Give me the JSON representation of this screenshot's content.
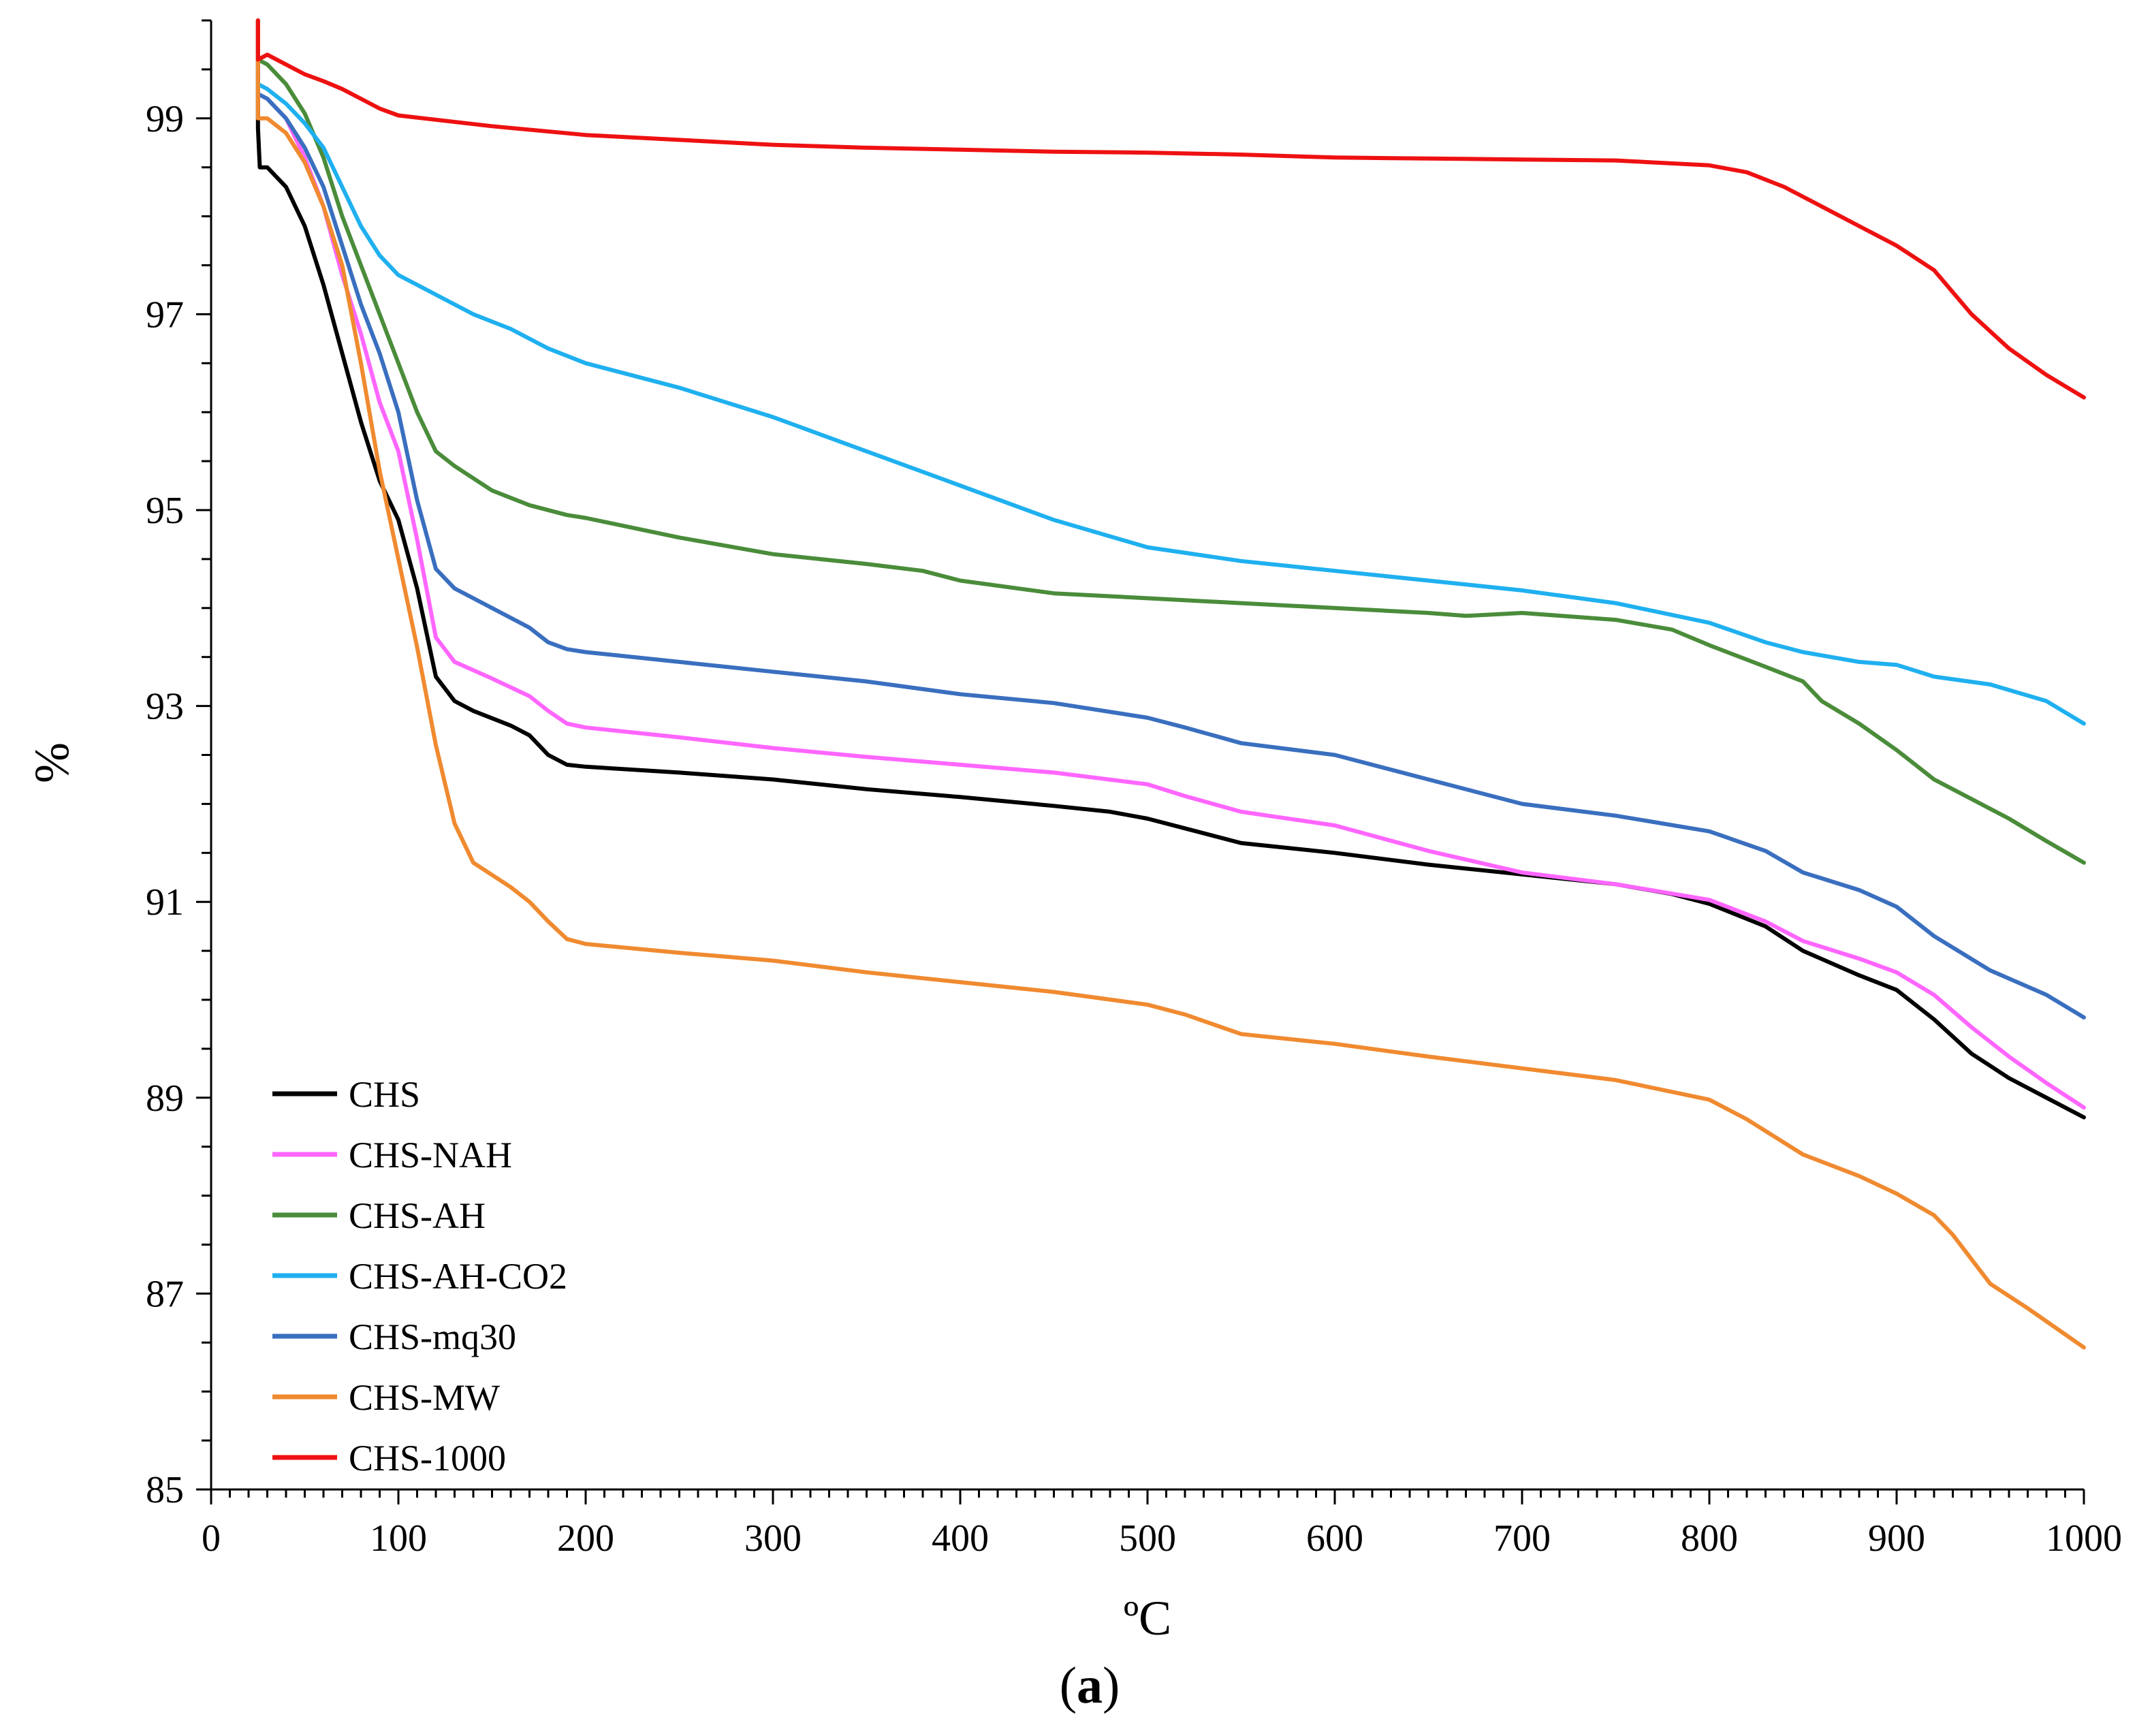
{
  "chart_data": {
    "type": "line",
    "title": "",
    "xlabel": "ºC",
    "ylabel": "%",
    "panel_label": {
      "open": "(",
      "letter": "a",
      "close": ")"
    },
    "xlim": [
      0,
      1000
    ],
    "ylim": [
      85,
      100
    ],
    "x_ticks": [
      0,
      100,
      200,
      300,
      400,
      500,
      600,
      700,
      800,
      900,
      1000
    ],
    "y_ticks": [
      85,
      87,
      89,
      91,
      93,
      95,
      97,
      99
    ],
    "y_minor_step": 0.5,
    "x_minor_step": 10,
    "legend_position": "bottom-left",
    "series": [
      {
        "name": "CHS",
        "color": "#000000",
        "points": [
          [
            25,
            100
          ],
          [
            25,
            98.9
          ],
          [
            26,
            98.5
          ],
          [
            30,
            98.5
          ],
          [
            40,
            98.3
          ],
          [
            50,
            97.9
          ],
          [
            60,
            97.3
          ],
          [
            70,
            96.6
          ],
          [
            80,
            95.9
          ],
          [
            90,
            95.3
          ],
          [
            100,
            94.9
          ],
          [
            110,
            94.2
          ],
          [
            120,
            93.3
          ],
          [
            130,
            93.05
          ],
          [
            140,
            92.95
          ],
          [
            160,
            92.8
          ],
          [
            170,
            92.7
          ],
          [
            180,
            92.5
          ],
          [
            190,
            92.4
          ],
          [
            200,
            92.38
          ],
          [
            250,
            92.32
          ],
          [
            300,
            92.25
          ],
          [
            350,
            92.15
          ],
          [
            400,
            92.07
          ],
          [
            450,
            91.98
          ],
          [
            480,
            91.92
          ],
          [
            500,
            91.85
          ],
          [
            520,
            91.75
          ],
          [
            550,
            91.6
          ],
          [
            600,
            91.5
          ],
          [
            650,
            91.38
          ],
          [
            700,
            91.28
          ],
          [
            750,
            91.18
          ],
          [
            780,
            91.08
          ],
          [
            800,
            90.98
          ],
          [
            830,
            90.75
          ],
          [
            850,
            90.5
          ],
          [
            880,
            90.25
          ],
          [
            900,
            90.1
          ],
          [
            920,
            89.8
          ],
          [
            940,
            89.45
          ],
          [
            960,
            89.2
          ],
          [
            980,
            89.0
          ],
          [
            1000,
            88.8
          ]
        ]
      },
      {
        "name": "CHS-NAH",
        "color": "#ff66ff",
        "points": [
          [
            25,
            99.25
          ],
          [
            30,
            99.2
          ],
          [
            40,
            99.0
          ],
          [
            50,
            98.6
          ],
          [
            60,
            98.1
          ],
          [
            70,
            97.4
          ],
          [
            80,
            96.8
          ],
          [
            90,
            96.1
          ],
          [
            100,
            95.6
          ],
          [
            110,
            94.7
          ],
          [
            120,
            93.7
          ],
          [
            130,
            93.45
          ],
          [
            150,
            93.28
          ],
          [
            170,
            93.1
          ],
          [
            180,
            92.95
          ],
          [
            190,
            92.82
          ],
          [
            200,
            92.78
          ],
          [
            250,
            92.68
          ],
          [
            300,
            92.57
          ],
          [
            350,
            92.48
          ],
          [
            400,
            92.4
          ],
          [
            450,
            92.32
          ],
          [
            500,
            92.2
          ],
          [
            520,
            92.08
          ],
          [
            550,
            91.92
          ],
          [
            600,
            91.78
          ],
          [
            650,
            91.52
          ],
          [
            700,
            91.3
          ],
          [
            750,
            91.18
          ],
          [
            800,
            91.02
          ],
          [
            830,
            90.8
          ],
          [
            850,
            90.6
          ],
          [
            880,
            90.42
          ],
          [
            900,
            90.28
          ],
          [
            920,
            90.05
          ],
          [
            940,
            89.72
          ],
          [
            960,
            89.42
          ],
          [
            980,
            89.15
          ],
          [
            1000,
            88.9
          ]
        ]
      },
      {
        "name": "CHS-AH",
        "color": "#4a8c3a",
        "points": [
          [
            25,
            99.6
          ],
          [
            30,
            99.55
          ],
          [
            40,
            99.35
          ],
          [
            50,
            99.05
          ],
          [
            60,
            98.6
          ],
          [
            70,
            98.0
          ],
          [
            80,
            97.5
          ],
          [
            90,
            97.0
          ],
          [
            100,
            96.5
          ],
          [
            110,
            96.0
          ],
          [
            120,
            95.6
          ],
          [
            130,
            95.45
          ],
          [
            150,
            95.2
          ],
          [
            170,
            95.05
          ],
          [
            190,
            94.95
          ],
          [
            200,
            94.92
          ],
          [
            250,
            94.72
          ],
          [
            300,
            94.55
          ],
          [
            350,
            94.45
          ],
          [
            380,
            94.38
          ],
          [
            400,
            94.28
          ],
          [
            450,
            94.15
          ],
          [
            500,
            94.1
          ],
          [
            550,
            94.05
          ],
          [
            600,
            94.0
          ],
          [
            650,
            93.95
          ],
          [
            670,
            93.92
          ],
          [
            700,
            93.95
          ],
          [
            750,
            93.88
          ],
          [
            780,
            93.78
          ],
          [
            800,
            93.62
          ],
          [
            830,
            93.4
          ],
          [
            850,
            93.25
          ],
          [
            860,
            93.05
          ],
          [
            880,
            92.82
          ],
          [
            900,
            92.55
          ],
          [
            920,
            92.25
          ],
          [
            940,
            92.05
          ],
          [
            960,
            91.85
          ],
          [
            980,
            91.62
          ],
          [
            1000,
            91.4
          ]
        ]
      },
      {
        "name": "CHS-AH-CO2",
        "color": "#1fb0ef",
        "points": [
          [
            25,
            99.35
          ],
          [
            30,
            99.3
          ],
          [
            40,
            99.15
          ],
          [
            50,
            98.95
          ],
          [
            60,
            98.7
          ],
          [
            70,
            98.3
          ],
          [
            80,
            97.9
          ],
          [
            90,
            97.6
          ],
          [
            100,
            97.4
          ],
          [
            120,
            97.2
          ],
          [
            140,
            97.0
          ],
          [
            160,
            96.85
          ],
          [
            180,
            96.65
          ],
          [
            200,
            96.5
          ],
          [
            250,
            96.25
          ],
          [
            300,
            95.95
          ],
          [
            350,
            95.6
          ],
          [
            400,
            95.25
          ],
          [
            450,
            94.9
          ],
          [
            500,
            94.62
          ],
          [
            550,
            94.48
          ],
          [
            600,
            94.38
          ],
          [
            650,
            94.28
          ],
          [
            700,
            94.18
          ],
          [
            750,
            94.05
          ],
          [
            800,
            93.85
          ],
          [
            830,
            93.65
          ],
          [
            850,
            93.55
          ],
          [
            880,
            93.45
          ],
          [
            900,
            93.42
          ],
          [
            920,
            93.3
          ],
          [
            950,
            93.22
          ],
          [
            980,
            93.05
          ],
          [
            1000,
            92.82
          ]
        ]
      },
      {
        "name": "CHS-mq30",
        "color": "#3a6fbf",
        "points": [
          [
            25,
            99.25
          ],
          [
            30,
            99.2
          ],
          [
            40,
            99.0
          ],
          [
            50,
            98.7
          ],
          [
            60,
            98.3
          ],
          [
            70,
            97.7
          ],
          [
            80,
            97.1
          ],
          [
            90,
            96.6
          ],
          [
            100,
            96.0
          ],
          [
            110,
            95.1
          ],
          [
            120,
            94.4
          ],
          [
            130,
            94.2
          ],
          [
            150,
            94.0
          ],
          [
            170,
            93.8
          ],
          [
            180,
            93.65
          ],
          [
            190,
            93.58
          ],
          [
            200,
            93.55
          ],
          [
            250,
            93.45
          ],
          [
            300,
            93.35
          ],
          [
            350,
            93.25
          ],
          [
            400,
            93.12
          ],
          [
            450,
            93.03
          ],
          [
            500,
            92.88
          ],
          [
            520,
            92.78
          ],
          [
            550,
            92.62
          ],
          [
            600,
            92.5
          ],
          [
            650,
            92.25
          ],
          [
            700,
            92.0
          ],
          [
            750,
            91.88
          ],
          [
            800,
            91.72
          ],
          [
            830,
            91.52
          ],
          [
            850,
            91.3
          ],
          [
            880,
            91.12
          ],
          [
            900,
            90.95
          ],
          [
            920,
            90.65
          ],
          [
            950,
            90.3
          ],
          [
            980,
            90.05
          ],
          [
            1000,
            89.82
          ]
        ]
      },
      {
        "name": "CHS-MW",
        "color": "#f08a30",
        "points": [
          [
            25,
            100
          ],
          [
            25,
            99.0
          ],
          [
            30,
            99.0
          ],
          [
            40,
            98.85
          ],
          [
            50,
            98.55
          ],
          [
            60,
            98.1
          ],
          [
            70,
            97.5
          ],
          [
            80,
            96.5
          ],
          [
            90,
            95.4
          ],
          [
            100,
            94.5
          ],
          [
            110,
            93.6
          ],
          [
            120,
            92.6
          ],
          [
            130,
            91.8
          ],
          [
            140,
            91.4
          ],
          [
            160,
            91.15
          ],
          [
            170,
            91.0
          ],
          [
            180,
            90.8
          ],
          [
            190,
            90.62
          ],
          [
            200,
            90.57
          ],
          [
            250,
            90.48
          ],
          [
            300,
            90.4
          ],
          [
            350,
            90.28
          ],
          [
            400,
            90.18
          ],
          [
            450,
            90.08
          ],
          [
            500,
            89.95
          ],
          [
            520,
            89.85
          ],
          [
            550,
            89.65
          ],
          [
            600,
            89.55
          ],
          [
            650,
            89.42
          ],
          [
            700,
            89.3
          ],
          [
            750,
            89.18
          ],
          [
            800,
            88.98
          ],
          [
            820,
            88.78
          ],
          [
            850,
            88.42
          ],
          [
            880,
            88.2
          ],
          [
            900,
            88.02
          ],
          [
            920,
            87.8
          ],
          [
            930,
            87.6
          ],
          [
            950,
            87.1
          ],
          [
            970,
            86.85
          ],
          [
            1000,
            86.45
          ]
        ]
      },
      {
        "name": "CHS-1000",
        "color": "#ee1111",
        "points": [
          [
            25,
            100
          ],
          [
            25,
            99.6
          ],
          [
            30,
            99.65
          ],
          [
            40,
            99.55
          ],
          [
            50,
            99.45
          ],
          [
            60,
            99.38
          ],
          [
            70,
            99.3
          ],
          [
            80,
            99.2
          ],
          [
            90,
            99.1
          ],
          [
            100,
            99.03
          ],
          [
            150,
            98.92
          ],
          [
            200,
            98.83
          ],
          [
            250,
            98.78
          ],
          [
            300,
            98.73
          ],
          [
            350,
            98.7
          ],
          [
            400,
            98.68
          ],
          [
            450,
            98.66
          ],
          [
            500,
            98.65
          ],
          [
            550,
            98.63
          ],
          [
            600,
            98.6
          ],
          [
            650,
            98.59
          ],
          [
            700,
            98.58
          ],
          [
            750,
            98.57
          ],
          [
            800,
            98.52
          ],
          [
            820,
            98.45
          ],
          [
            840,
            98.3
          ],
          [
            860,
            98.1
          ],
          [
            880,
            97.9
          ],
          [
            900,
            97.7
          ],
          [
            920,
            97.45
          ],
          [
            940,
            97.0
          ],
          [
            960,
            96.65
          ],
          [
            980,
            96.38
          ],
          [
            1000,
            96.15
          ]
        ]
      }
    ]
  }
}
